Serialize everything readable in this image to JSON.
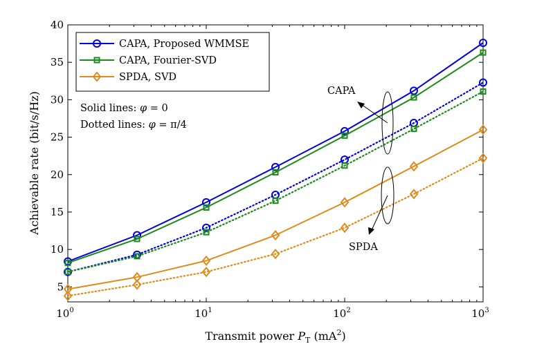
{
  "chart_data": {
    "type": "line",
    "x_scale": "log",
    "xlim": [
      1,
      1000
    ],
    "ylim": [
      3,
      40
    ],
    "x": [
      1,
      3.1623,
      10,
      31.623,
      100,
      316.23,
      1000
    ],
    "x_ticks": [
      {
        "value": 1,
        "base": "10",
        "exp": "0"
      },
      {
        "value": 10,
        "base": "10",
        "exp": "1"
      },
      {
        "value": 100,
        "base": "10",
        "exp": "2"
      },
      {
        "value": 1000,
        "base": "10",
        "exp": "3"
      }
    ],
    "y_ticks": [
      "5",
      "10",
      "15",
      "20",
      "25",
      "30",
      "35",
      "40"
    ],
    "xlabel": {
      "prefix": "Transmit power ",
      "symbol": "P",
      "subscript": "T",
      "unit_open": " (mA",
      "unit_sup": "2",
      "unit_close": ")"
    },
    "ylabel": "Achievable rate (bit/s/Hz)",
    "grid": false,
    "legend_position": "top-left",
    "series": [
      {
        "name": "CAPA, Proposed WMMSE",
        "color": "#0000e0",
        "marker": "circle",
        "style": "solid",
        "in_legend": true,
        "values": [
          8.4,
          11.9,
          16.3,
          21.0,
          25.8,
          31.2,
          37.6
        ]
      },
      {
        "name": "CAPA, Fourier-SVD",
        "color": "#1a8a1a",
        "marker": "square",
        "style": "solid",
        "in_legend": true,
        "values": [
          8.2,
          11.4,
          15.6,
          20.3,
          25.2,
          30.3,
          36.3
        ]
      },
      {
        "name": "SPDA, SVD",
        "color": "#e08a1a",
        "marker": "diamond",
        "style": "solid",
        "in_legend": true,
        "values": [
          4.7,
          6.3,
          8.5,
          11.9,
          16.3,
          21.1,
          26.0
        ]
      },
      {
        "name": "CAPA, Proposed WMMSE (phi = pi/4)",
        "color": "#0000e0",
        "marker": "circle",
        "style": "dotted",
        "in_legend": false,
        "values": [
          7.0,
          9.3,
          12.9,
          17.3,
          22.0,
          26.9,
          32.3
        ]
      },
      {
        "name": "CAPA, Fourier-SVD (phi = pi/4)",
        "color": "#1a8a1a",
        "marker": "square",
        "style": "dotted",
        "in_legend": false,
        "values": [
          7.0,
          9.1,
          12.3,
          16.5,
          21.2,
          26.1,
          31.1
        ]
      },
      {
        "name": "SPDA, SVD (phi = pi/4)",
        "color": "#e08a1a",
        "marker": "diamond",
        "style": "dotted",
        "in_legend": false,
        "values": [
          3.8,
          5.3,
          7.0,
          9.4,
          12.9,
          17.4,
          22.2
        ]
      }
    ],
    "annotations": {
      "solid_note": {
        "prefix": "Solid lines: ",
        "symbol": "φ",
        "value": " = 0"
      },
      "dotted_note": {
        "prefix": "Dotted lines: ",
        "symbol": "φ",
        "value": " = π/4"
      },
      "capa_label": "CAPA",
      "spda_label": "SPDA"
    }
  }
}
